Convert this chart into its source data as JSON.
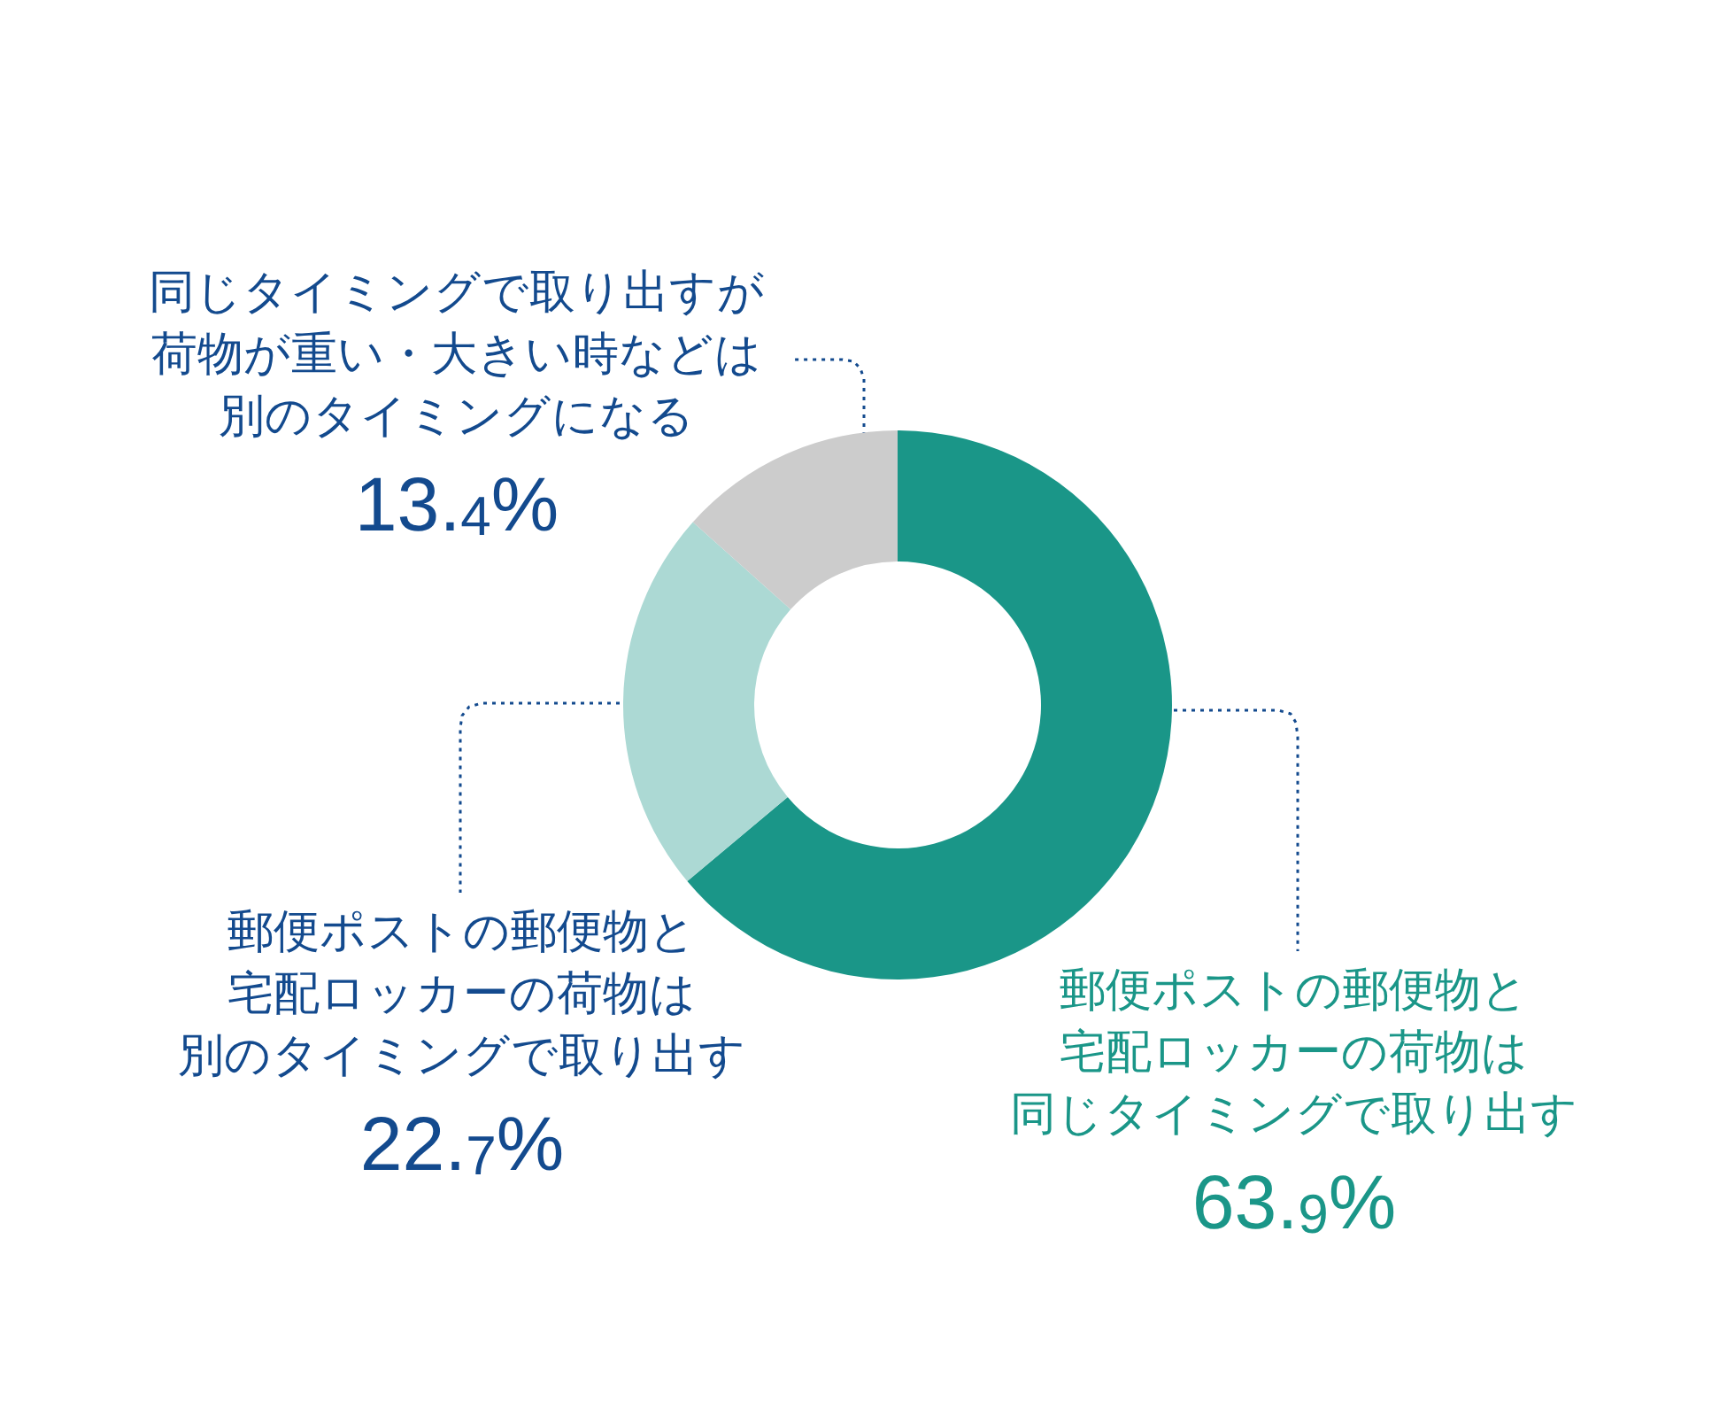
{
  "chart_data": {
    "type": "donut",
    "categories": [
      "郵便ポストの郵便物と宅配ロッカーの荷物は同じタイミングで取り出す",
      "郵便ポストの郵便物と宅配ロッカーの荷物は別のタイミングで取り出す",
      "同じタイミングで取り出すが荷物が重い・大きい時などは別のタイミングになる"
    ],
    "values": [
      63.9,
      22.7,
      13.4
    ],
    "colors": [
      "#1a9688",
      "#acd9d4",
      "#cccccc"
    ],
    "value_labels": [
      "63.9%",
      "22.7%",
      "13.4%"
    ]
  }
}
